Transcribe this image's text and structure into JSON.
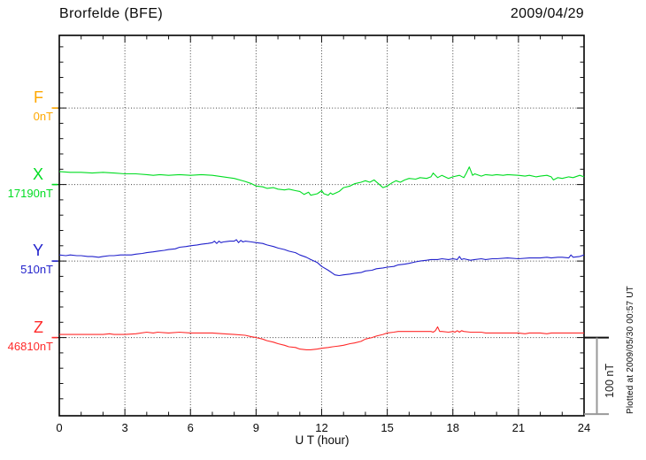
{
  "chart_data": {
    "type": "line",
    "title": "Brorfelde (BFE)",
    "date": "2009/04/29",
    "xlabel": "U T (hour)",
    "xlim": [
      0,
      24
    ],
    "x_major_ticks": [
      0,
      3,
      6,
      9,
      12,
      15,
      18,
      21,
      24
    ],
    "x_tick_labels": [
      "0",
      "3",
      "6",
      "9",
      "12",
      "15",
      "18",
      "21",
      "24"
    ],
    "x_minor_step_hours": 1,
    "grid": {
      "vertical_dotted_every_hours": 3,
      "horizontal_dotted_at_baselines": true
    },
    "scale": {
      "label": "100 nT",
      "nT_per_division": 100,
      "minor_tick_nT": 20
    },
    "plotted_at": "Plotted at 2009/05/30 00:57 UT",
    "series_unit": "nT offset from component baseline, x in UT hours",
    "series": [
      {
        "name": "F",
        "baseline_label": "0nT",
        "color": "#FFA800",
        "points": []
      },
      {
        "name": "X",
        "baseline_label": "17190nT",
        "color": "#00DD22",
        "points": [
          [
            0,
            17
          ],
          [
            0.5,
            16
          ],
          [
            1,
            16
          ],
          [
            1.5,
            15
          ],
          [
            2,
            16
          ],
          [
            2.5,
            15
          ],
          [
            3,
            14
          ],
          [
            3.5,
            14
          ],
          [
            4,
            13
          ],
          [
            4.3,
            12
          ],
          [
            4.6,
            13
          ],
          [
            5,
            12
          ],
          [
            5.5,
            13
          ],
          [
            6,
            12
          ],
          [
            6.5,
            13
          ],
          [
            7,
            12
          ],
          [
            7.5,
            10
          ],
          [
            8,
            8
          ],
          [
            8.5,
            4
          ],
          [
            8.8,
            1
          ],
          [
            9,
            -2
          ],
          [
            9.3,
            -3
          ],
          [
            9.5,
            -5
          ],
          [
            9.8,
            -4
          ],
          [
            10,
            -6
          ],
          [
            10.3,
            -7
          ],
          [
            10.5,
            -6
          ],
          [
            10.8,
            -8
          ],
          [
            11,
            -9
          ],
          [
            11.2,
            -13
          ],
          [
            11.4,
            -10
          ],
          [
            11.5,
            -14
          ],
          [
            11.8,
            -12
          ],
          [
            12,
            -8
          ],
          [
            12.1,
            -12
          ],
          [
            12.3,
            -14
          ],
          [
            12.4,
            -11
          ],
          [
            12.5,
            -13
          ],
          [
            12.8,
            -9
          ],
          [
            13,
            -4
          ],
          [
            13.3,
            -2
          ],
          [
            13.5,
            1
          ],
          [
            13.8,
            3
          ],
          [
            14,
            5
          ],
          [
            14.2,
            3
          ],
          [
            14.4,
            6
          ],
          [
            14.6,
            1
          ],
          [
            14.8,
            -4
          ],
          [
            15,
            -2
          ],
          [
            15.2,
            2
          ],
          [
            15.4,
            5
          ],
          [
            15.6,
            3
          ],
          [
            15.8,
            6
          ],
          [
            16,
            8
          ],
          [
            16.3,
            7
          ],
          [
            16.5,
            9
          ],
          [
            16.8,
            8
          ],
          [
            17,
            10
          ],
          [
            17.1,
            15
          ],
          [
            17.3,
            9
          ],
          [
            17.5,
            12
          ],
          [
            17.8,
            8
          ],
          [
            18,
            10
          ],
          [
            18.3,
            12
          ],
          [
            18.5,
            9
          ],
          [
            18.6,
            14
          ],
          [
            18.75,
            23
          ],
          [
            18.9,
            12
          ],
          [
            19,
            14
          ],
          [
            19.3,
            11
          ],
          [
            19.5,
            13
          ],
          [
            19.8,
            12
          ],
          [
            20,
            13
          ],
          [
            20.3,
            12
          ],
          [
            20.5,
            13
          ],
          [
            21,
            12
          ],
          [
            21.3,
            11
          ],
          [
            21.5,
            12
          ],
          [
            21.8,
            10
          ],
          [
            22,
            11
          ],
          [
            22.3,
            12
          ],
          [
            22.5,
            10
          ],
          [
            22.6,
            6
          ],
          [
            22.8,
            9
          ],
          [
            23,
            8
          ],
          [
            23.3,
            10
          ],
          [
            23.5,
            9
          ],
          [
            23.8,
            12
          ],
          [
            24,
            10
          ]
        ]
      },
      {
        "name": "Y",
        "baseline_label": "510nT",
        "color": "#2222CC",
        "points": [
          [
            0,
            8
          ],
          [
            0.3,
            7
          ],
          [
            0.5,
            8
          ],
          [
            0.8,
            7
          ],
          [
            1,
            7
          ],
          [
            1.3,
            6
          ],
          [
            1.5,
            6
          ],
          [
            1.8,
            5
          ],
          [
            2,
            6
          ],
          [
            2.3,
            7
          ],
          [
            2.5,
            7
          ],
          [
            2.8,
            8
          ],
          [
            3,
            8
          ],
          [
            3.3,
            8
          ],
          [
            3.5,
            9
          ],
          [
            3.8,
            10
          ],
          [
            4,
            11
          ],
          [
            4.3,
            12
          ],
          [
            4.5,
            13
          ],
          [
            4.8,
            14
          ],
          [
            5,
            15
          ],
          [
            5.3,
            16
          ],
          [
            5.5,
            18
          ],
          [
            5.8,
            19
          ],
          [
            6,
            20
          ],
          [
            6.3,
            21
          ],
          [
            6.5,
            22
          ],
          [
            6.8,
            23
          ],
          [
            7,
            24
          ],
          [
            7.1,
            26
          ],
          [
            7.2,
            23
          ],
          [
            7.3,
            26
          ],
          [
            7.4,
            24
          ],
          [
            7.5,
            25
          ],
          [
            7.8,
            26
          ],
          [
            8,
            26
          ],
          [
            8.1,
            28
          ],
          [
            8.2,
            24
          ],
          [
            8.3,
            27
          ],
          [
            8.4,
            25
          ],
          [
            8.5,
            26
          ],
          [
            8.8,
            25
          ],
          [
            9,
            24
          ],
          [
            9.3,
            23
          ],
          [
            9.5,
            21
          ],
          [
            9.8,
            19
          ],
          [
            10,
            17
          ],
          [
            10.3,
            15
          ],
          [
            10.5,
            13
          ],
          [
            10.8,
            11
          ],
          [
            11,
            8
          ],
          [
            11.3,
            5
          ],
          [
            11.5,
            2
          ],
          [
            11.8,
            -2
          ],
          [
            12,
            -7
          ],
          [
            12.3,
            -12
          ],
          [
            12.5,
            -16
          ],
          [
            12.6,
            -18
          ],
          [
            12.8,
            -19
          ],
          [
            13,
            -18
          ],
          [
            13.3,
            -17
          ],
          [
            13.5,
            -16
          ],
          [
            13.8,
            -15
          ],
          [
            14,
            -13
          ],
          [
            14.3,
            -12
          ],
          [
            14.5,
            -10
          ],
          [
            14.8,
            -9
          ],
          [
            15,
            -8
          ],
          [
            15.3,
            -7
          ],
          [
            15.5,
            -5
          ],
          [
            15.8,
            -4
          ],
          [
            16,
            -3
          ],
          [
            16.3,
            -1
          ],
          [
            16.5,
            0
          ],
          [
            16.8,
            1
          ],
          [
            17,
            2
          ],
          [
            17.3,
            2
          ],
          [
            17.5,
            3
          ],
          [
            17.8,
            2
          ],
          [
            18,
            3
          ],
          [
            18.2,
            2
          ],
          [
            18.3,
            6
          ],
          [
            18.4,
            2
          ],
          [
            18.5,
            3
          ],
          [
            18.8,
            1
          ],
          [
            19,
            2
          ],
          [
            19.3,
            3
          ],
          [
            19.5,
            2
          ],
          [
            19.8,
            3
          ],
          [
            20,
            3
          ],
          [
            20.5,
            4
          ],
          [
            21,
            3
          ],
          [
            21.5,
            4
          ],
          [
            22,
            4
          ],
          [
            22.3,
            5
          ],
          [
            22.5,
            4
          ],
          [
            22.8,
            5
          ],
          [
            23,
            5
          ],
          [
            23.3,
            4
          ],
          [
            23.4,
            8
          ],
          [
            23.5,
            5
          ],
          [
            23.8,
            6
          ],
          [
            24,
            8
          ]
        ]
      },
      {
        "name": "Z",
        "baseline_label": "46810nT",
        "color": "#FF2A2A",
        "points": [
          [
            0,
            4
          ],
          [
            0.5,
            4
          ],
          [
            1,
            4
          ],
          [
            1.5,
            4
          ],
          [
            2,
            4
          ],
          [
            2.3,
            5
          ],
          [
            2.5,
            4
          ],
          [
            3,
            4
          ],
          [
            3.5,
            5
          ],
          [
            4,
            7
          ],
          [
            4.3,
            6
          ],
          [
            4.5,
            7
          ],
          [
            5,
            6
          ],
          [
            5.5,
            7
          ],
          [
            6,
            6
          ],
          [
            6.5,
            6
          ],
          [
            7,
            6
          ],
          [
            7.5,
            5
          ],
          [
            8,
            4
          ],
          [
            8.5,
            3
          ],
          [
            8.8,
            1
          ],
          [
            9,
            0
          ],
          [
            9.3,
            -2
          ],
          [
            9.5,
            -4
          ],
          [
            9.8,
            -6
          ],
          [
            10,
            -8
          ],
          [
            10.3,
            -10
          ],
          [
            10.5,
            -12
          ],
          [
            10.8,
            -13
          ],
          [
            11,
            -15
          ],
          [
            11.3,
            -16
          ],
          [
            11.5,
            -16
          ],
          [
            11.8,
            -15
          ],
          [
            12,
            -14
          ],
          [
            12.3,
            -13
          ],
          [
            12.5,
            -12
          ],
          [
            12.8,
            -11
          ],
          [
            13,
            -10
          ],
          [
            13.3,
            -8
          ],
          [
            13.5,
            -7
          ],
          [
            13.8,
            -5
          ],
          [
            14,
            -2
          ],
          [
            14.3,
            0
          ],
          [
            14.5,
            2
          ],
          [
            14.8,
            4
          ],
          [
            15,
            6
          ],
          [
            15.3,
            7
          ],
          [
            15.5,
            8
          ],
          [
            15.8,
            8
          ],
          [
            16,
            8
          ],
          [
            16.3,
            8
          ],
          [
            16.5,
            8
          ],
          [
            16.8,
            8
          ],
          [
            17,
            8
          ],
          [
            17.1,
            7
          ],
          [
            17.2,
            9
          ],
          [
            17.3,
            14
          ],
          [
            17.4,
            8
          ],
          [
            17.5,
            8
          ],
          [
            17.8,
            7
          ],
          [
            18,
            8
          ],
          [
            18.1,
            7
          ],
          [
            18.2,
            9
          ],
          [
            18.3,
            7
          ],
          [
            18.4,
            9
          ],
          [
            18.5,
            8
          ],
          [
            18.8,
            7
          ],
          [
            19,
            7
          ],
          [
            19.3,
            7
          ],
          [
            19.5,
            6
          ],
          [
            19.8,
            6
          ],
          [
            20,
            6
          ],
          [
            20.5,
            6
          ],
          [
            21,
            6
          ],
          [
            21.3,
            5
          ],
          [
            21.5,
            6
          ],
          [
            22,
            6
          ],
          [
            22.3,
            5
          ],
          [
            22.5,
            6
          ],
          [
            23,
            6
          ],
          [
            23.3,
            6
          ],
          [
            23.5,
            6
          ],
          [
            23.8,
            6
          ],
          [
            24,
            6
          ]
        ]
      }
    ]
  }
}
